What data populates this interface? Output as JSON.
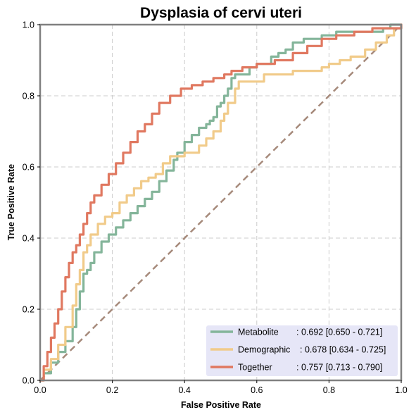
{
  "chart_data": {
    "type": "line",
    "title": "Dysplasia of cervi uteri",
    "xlabel": "False Positive Rate",
    "ylabel": "True Positive Rate",
    "xlim": [
      0,
      1
    ],
    "ylim": [
      0,
      1
    ],
    "xticks": [
      "0.0",
      "0.2",
      "0.4",
      "0.6",
      "0.8",
      "1.0"
    ],
    "yticks": [
      "0.0",
      "0.2",
      "0.4",
      "0.6",
      "0.8",
      "1.0"
    ],
    "grid": true,
    "legend_position": "bottom-right",
    "diagonal": {
      "style": "dashed",
      "color": "#a68a7b",
      "points": [
        [
          0,
          0
        ],
        [
          1,
          1
        ]
      ]
    },
    "series": [
      {
        "name": "Metabolite",
        "legend_name": "Metabolite",
        "legend_value": ": 0.692 [0.650 - 0.721]",
        "color": "#84b59a",
        "points": [
          [
            0,
            0
          ],
          [
            0.01,
            0.02
          ],
          [
            0.03,
            0.05
          ],
          [
            0.05,
            0.08
          ],
          [
            0.07,
            0.11
          ],
          [
            0.09,
            0.15
          ],
          [
            0.1,
            0.2
          ],
          [
            0.11,
            0.25
          ],
          [
            0.12,
            0.27
          ],
          [
            0.12,
            0.3
          ],
          [
            0.13,
            0.31
          ],
          [
            0.14,
            0.33
          ],
          [
            0.15,
            0.36
          ],
          [
            0.17,
            0.39
          ],
          [
            0.19,
            0.41
          ],
          [
            0.21,
            0.43
          ],
          [
            0.23,
            0.45
          ],
          [
            0.25,
            0.47
          ],
          [
            0.27,
            0.49
          ],
          [
            0.29,
            0.51
          ],
          [
            0.31,
            0.53
          ],
          [
            0.33,
            0.56
          ],
          [
            0.35,
            0.59
          ],
          [
            0.37,
            0.62
          ],
          [
            0.38,
            0.64
          ],
          [
            0.4,
            0.67
          ],
          [
            0.42,
            0.69
          ],
          [
            0.44,
            0.71
          ],
          [
            0.46,
            0.72
          ],
          [
            0.47,
            0.73
          ],
          [
            0.48,
            0.74
          ],
          [
            0.49,
            0.77
          ],
          [
            0.5,
            0.78
          ],
          [
            0.51,
            0.8
          ],
          [
            0.52,
            0.82
          ],
          [
            0.53,
            0.85
          ],
          [
            0.54,
            0.86
          ],
          [
            0.56,
            0.86
          ],
          [
            0.58,
            0.88
          ],
          [
            0.6,
            0.89
          ],
          [
            0.62,
            0.89
          ],
          [
            0.64,
            0.91
          ],
          [
            0.66,
            0.92
          ],
          [
            0.68,
            0.93
          ],
          [
            0.7,
            0.95
          ],
          [
            0.73,
            0.96
          ],
          [
            0.75,
            0.96
          ],
          [
            0.78,
            0.97
          ],
          [
            0.82,
            0.98
          ],
          [
            0.9,
            0.98
          ],
          [
            0.95,
            0.99
          ],
          [
            0.97,
            1.0
          ],
          [
            1.0,
            1.0
          ]
        ]
      },
      {
        "name": "Demographic",
        "legend_name": "Demographic",
        "legend_value": ": 0.678 [0.634 - 0.725]",
        "color": "#f1cb8a",
        "points": [
          [
            0,
            0
          ],
          [
            0.01,
            0.03
          ],
          [
            0.03,
            0.06
          ],
          [
            0.05,
            0.1
          ],
          [
            0.07,
            0.15
          ],
          [
            0.09,
            0.21
          ],
          [
            0.1,
            0.27
          ],
          [
            0.11,
            0.31
          ],
          [
            0.12,
            0.36
          ],
          [
            0.13,
            0.38
          ],
          [
            0.14,
            0.41
          ],
          [
            0.16,
            0.44
          ],
          [
            0.18,
            0.46
          ],
          [
            0.2,
            0.47
          ],
          [
            0.22,
            0.5
          ],
          [
            0.24,
            0.52
          ],
          [
            0.26,
            0.54
          ],
          [
            0.28,
            0.56
          ],
          [
            0.3,
            0.57
          ],
          [
            0.32,
            0.58
          ],
          [
            0.34,
            0.61
          ],
          [
            0.36,
            0.63
          ],
          [
            0.38,
            0.63
          ],
          [
            0.4,
            0.64
          ],
          [
            0.42,
            0.64
          ],
          [
            0.44,
            0.66
          ],
          [
            0.46,
            0.68
          ],
          [
            0.48,
            0.7
          ],
          [
            0.5,
            0.73
          ],
          [
            0.51,
            0.75
          ],
          [
            0.52,
            0.78
          ],
          [
            0.54,
            0.82
          ],
          [
            0.55,
            0.84
          ],
          [
            0.58,
            0.84
          ],
          [
            0.62,
            0.86
          ],
          [
            0.66,
            0.86
          ],
          [
            0.7,
            0.87
          ],
          [
            0.75,
            0.87
          ],
          [
            0.78,
            0.88
          ],
          [
            0.8,
            0.89
          ],
          [
            0.83,
            0.9
          ],
          [
            0.86,
            0.91
          ],
          [
            0.9,
            0.93
          ],
          [
            0.93,
            0.95
          ],
          [
            0.96,
            0.97
          ],
          [
            0.98,
            0.99
          ],
          [
            1.0,
            1.0
          ]
        ]
      },
      {
        "name": "Together",
        "legend_name": "Together",
        "legend_value": ": 0.757 [0.713 - 0.790]",
        "color": "#e07860",
        "points": [
          [
            0,
            0
          ],
          [
            0.01,
            0.04
          ],
          [
            0.02,
            0.08
          ],
          [
            0.03,
            0.12
          ],
          [
            0.04,
            0.16
          ],
          [
            0.05,
            0.2
          ],
          [
            0.06,
            0.25
          ],
          [
            0.07,
            0.29
          ],
          [
            0.08,
            0.33
          ],
          [
            0.09,
            0.36
          ],
          [
            0.1,
            0.38
          ],
          [
            0.11,
            0.41
          ],
          [
            0.12,
            0.44
          ],
          [
            0.13,
            0.47
          ],
          [
            0.14,
            0.5
          ],
          [
            0.15,
            0.52
          ],
          [
            0.17,
            0.55
          ],
          [
            0.19,
            0.58
          ],
          [
            0.21,
            0.61
          ],
          [
            0.23,
            0.64
          ],
          [
            0.25,
            0.67
          ],
          [
            0.27,
            0.7
          ],
          [
            0.29,
            0.72
          ],
          [
            0.31,
            0.75
          ],
          [
            0.33,
            0.78
          ],
          [
            0.36,
            0.8
          ],
          [
            0.39,
            0.82
          ],
          [
            0.42,
            0.83
          ],
          [
            0.45,
            0.84
          ],
          [
            0.48,
            0.85
          ],
          [
            0.51,
            0.86
          ],
          [
            0.53,
            0.87
          ],
          [
            0.56,
            0.88
          ],
          [
            0.6,
            0.89
          ],
          [
            0.65,
            0.9
          ],
          [
            0.7,
            0.92
          ],
          [
            0.74,
            0.94
          ],
          [
            0.78,
            0.96
          ],
          [
            0.82,
            0.97
          ],
          [
            0.87,
            0.98
          ],
          [
            0.92,
            0.99
          ],
          [
            0.96,
            0.99
          ],
          [
            1.0,
            1.0
          ]
        ]
      }
    ]
  }
}
